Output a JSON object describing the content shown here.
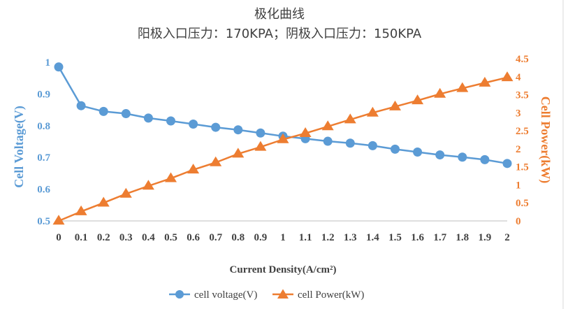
{
  "chart_data": {
    "type": "line",
    "title": "极化曲线",
    "subtitle": "阳极入口压力：170KPA；阴极入口压力：150KPA",
    "xlabel": "Current Density(A/cm²)",
    "ylabel": "Cell Voltage(V)",
    "y2label": "Cell Power(kW)",
    "categories": [
      "0",
      "0.1",
      "0.2",
      "0.3",
      "0.4",
      "0.5",
      "0.6",
      "0.7",
      "0.8",
      "0.9",
      "1",
      "1.1",
      "1.2",
      "1.3",
      "1.4",
      "1.5",
      "1.6",
      "1.7",
      "1.8",
      "1.9",
      "2"
    ],
    "ylim": [
      0.5,
      1
    ],
    "yticks": [
      "0.5",
      "0.6",
      "0.7",
      "0.8",
      "0.9",
      "1"
    ],
    "y2lim": [
      0,
      4.5
    ],
    "y2ticks": [
      "0",
      "0.5",
      "1",
      "1.5",
      "2",
      "2.5",
      "3",
      "3.5",
      "4",
      "4.5"
    ],
    "grid": false,
    "legend_position": "bottom",
    "series": [
      {
        "name": "cell voltage(V)",
        "axis": "left",
        "marker": "circle",
        "color": "#5B9BD5",
        "values": [
          0.985,
          0.863,
          0.845,
          0.838,
          0.824,
          0.815,
          0.805,
          0.795,
          0.787,
          0.777,
          0.767,
          0.759,
          0.751,
          0.745,
          0.737,
          0.726,
          0.717,
          0.708,
          0.701,
          0.693,
          0.681
        ]
      },
      {
        "name": "cell Power(kW)",
        "axis": "right",
        "marker": "triangle",
        "color": "#ED7D31",
        "values": [
          0,
          0.26,
          0.5,
          0.75,
          0.97,
          1.18,
          1.42,
          1.62,
          1.86,
          2.05,
          2.26,
          2.43,
          2.62,
          2.81,
          3.0,
          3.17,
          3.34,
          3.52,
          3.68,
          3.83,
          3.98
        ]
      }
    ]
  }
}
